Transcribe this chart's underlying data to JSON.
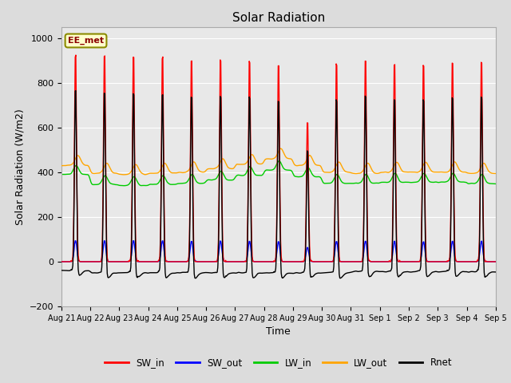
{
  "title": "Solar Radiation",
  "xlabel": "Time",
  "ylabel": "Solar Radiation (W/m2)",
  "ylim": [
    -200,
    1050
  ],
  "yticks": [
    -200,
    0,
    200,
    400,
    600,
    800,
    1000
  ],
  "annotation": "EE_met",
  "x_labels": [
    "Aug 21",
    "Aug 22",
    "Aug 23",
    "Aug 24",
    "Aug 25",
    "Aug 26",
    "Aug 27",
    "Aug 28",
    "Aug 29",
    "Aug 30",
    "Aug 31",
    "Sep 1",
    "Sep 2",
    "Sep 3",
    "Sep 4",
    "Sep 5"
  ],
  "n_days": 15,
  "series": {
    "SW_in": {
      "color": "#ff0000",
      "lw": 1.0
    },
    "SW_out": {
      "color": "#0000ff",
      "lw": 1.0
    },
    "LW_in": {
      "color": "#00cc00",
      "lw": 1.0
    },
    "LW_out": {
      "color": "#ffa500",
      "lw": 1.0
    },
    "Rnet": {
      "color": "#000000",
      "lw": 1.0
    }
  },
  "bg_color": "#e8e8e8",
  "grid_color": "#ffffff",
  "fig_bg": "#dcdcdc",
  "peaks_sw": [
    960,
    960,
    955,
    955,
    940,
    945,
    935,
    915,
    650,
    920,
    940,
    920,
    920,
    930,
    930
  ],
  "lw_in_base": [
    390,
    345,
    340,
    345,
    350,
    365,
    385,
    410,
    380,
    350,
    350,
    355,
    355,
    355,
    350
  ],
  "lw_out_base": [
    430,
    395,
    390,
    395,
    400,
    415,
    435,
    460,
    430,
    400,
    395,
    400,
    400,
    400,
    395
  ]
}
